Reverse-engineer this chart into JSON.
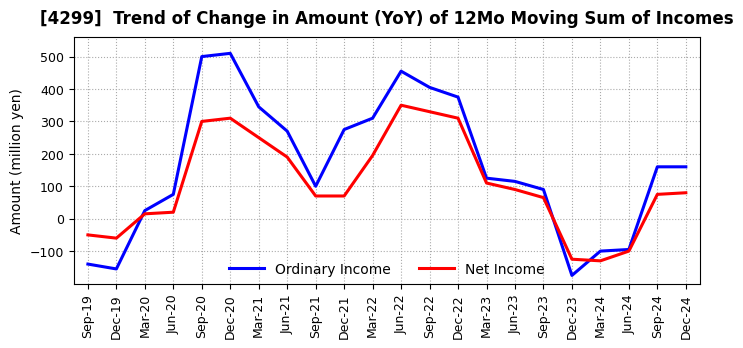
{
  "title": "[4299]  Trend of Change in Amount (YoY) of 12Mo Moving Sum of Incomes",
  "ylabel": "Amount (million yen)",
  "x_labels": [
    "Sep-19",
    "Dec-19",
    "Mar-20",
    "Jun-20",
    "Sep-20",
    "Dec-20",
    "Mar-21",
    "Jun-21",
    "Sep-21",
    "Dec-21",
    "Mar-22",
    "Jun-22",
    "Sep-22",
    "Dec-22",
    "Mar-23",
    "Jun-23",
    "Sep-23",
    "Dec-23",
    "Mar-24",
    "Jun-24",
    "Sep-24",
    "Dec-24"
  ],
  "ordinary_income": [
    -140,
    -155,
    25,
    75,
    500,
    510,
    345,
    270,
    100,
    275,
    310,
    455,
    405,
    375,
    125,
    115,
    90,
    -175,
    -100,
    -95,
    160,
    160
  ],
  "net_income": [
    -50,
    -60,
    15,
    20,
    300,
    310,
    250,
    190,
    70,
    70,
    195,
    350,
    330,
    310,
    110,
    90,
    65,
    -125,
    -130,
    -100,
    75,
    80
  ],
  "ylim": [
    -200,
    560
  ],
  "yticks": [
    -100,
    0,
    100,
    200,
    300,
    400,
    500
  ],
  "ordinary_color": "#0000ff",
  "net_color": "#ff0000",
  "grid_color": "#aaaaaa",
  "background_color": "#ffffff",
  "title_fontsize": 12,
  "axis_fontsize": 10,
  "tick_fontsize": 9,
  "legend_labels": [
    "Ordinary Income",
    "Net Income"
  ]
}
